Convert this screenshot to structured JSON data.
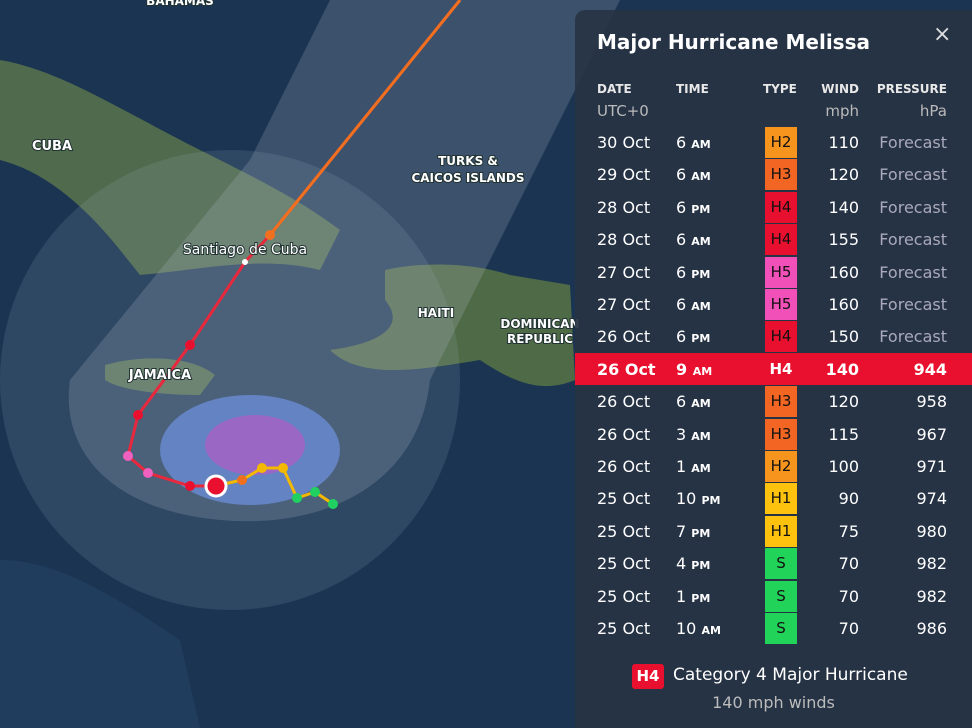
{
  "map": {
    "labels": {
      "bahamas": "BAHAMAS",
      "cuba": "CUBA",
      "turks_1": "TURKS &",
      "turks_2": "CAICOS ISLANDS",
      "santiago": "Santiago de Cuba",
      "haiti": "HAITI",
      "dominican_1": "DOMINICAN",
      "dominican_2": "REPUBLIC",
      "jamaica": "JAMAICA"
    }
  },
  "panel": {
    "title": "Major Hurricane Melissa",
    "headers": {
      "date": "DATE",
      "time": "TIME",
      "type": "TYPE",
      "wind": "WIND",
      "pressure": "PRESSURE"
    },
    "units": {
      "date": "UTC+0",
      "wind": "mph",
      "pressure": "hPa"
    },
    "highlight_color": "#e8102e",
    "rows": [
      {
        "date": "30 Oct",
        "time": "6",
        "period": "AM",
        "type": "H2",
        "type_color": "#f7941d",
        "wind": 110,
        "pressure": "Forecast"
      },
      {
        "date": "29 Oct",
        "time": "6",
        "period": "AM",
        "type": "H3",
        "type_color": "#f26522",
        "wind": 120,
        "pressure": "Forecast"
      },
      {
        "date": "28 Oct",
        "time": "6",
        "period": "PM",
        "type": "H4",
        "type_color": "#e8102e",
        "wind": 140,
        "pressure": "Forecast"
      },
      {
        "date": "28 Oct",
        "time": "6",
        "period": "AM",
        "type": "H4",
        "type_color": "#e8102e",
        "wind": 155,
        "pressure": "Forecast"
      },
      {
        "date": "27 Oct",
        "time": "6",
        "period": "PM",
        "type": "H5",
        "type_color": "#f050b8",
        "wind": 160,
        "pressure": "Forecast"
      },
      {
        "date": "27 Oct",
        "time": "6",
        "period": "AM",
        "type": "H5",
        "type_color": "#f050b8",
        "wind": 160,
        "pressure": "Forecast"
      },
      {
        "date": "26 Oct",
        "time": "6",
        "period": "PM",
        "type": "H4",
        "type_color": "#e8102e",
        "wind": 150,
        "pressure": "Forecast"
      },
      {
        "date": "26 Oct",
        "time": "9",
        "period": "AM",
        "type": "H4",
        "type_color": "#e8102e",
        "wind": 140,
        "pressure": 944,
        "current": true
      },
      {
        "date": "26 Oct",
        "time": "6",
        "period": "AM",
        "type": "H3",
        "type_color": "#f26522",
        "wind": 120,
        "pressure": 958
      },
      {
        "date": "26 Oct",
        "time": "3",
        "period": "AM",
        "type": "H3",
        "type_color": "#f26522",
        "wind": 115,
        "pressure": 967
      },
      {
        "date": "26 Oct",
        "time": "1",
        "period": "AM",
        "type": "H2",
        "type_color": "#f7941d",
        "wind": 100,
        "pressure": 971
      },
      {
        "date": "25 Oct",
        "time": "10",
        "period": "PM",
        "type": "H1",
        "type_color": "#fdc20e",
        "wind": 90,
        "pressure": 974
      },
      {
        "date": "25 Oct",
        "time": "7",
        "period": "PM",
        "type": "H1",
        "type_color": "#fdc20e",
        "wind": 75,
        "pressure": 980
      },
      {
        "date": "25 Oct",
        "time": "4",
        "period": "PM",
        "type": "S",
        "type_color": "#22d35a",
        "wind": 70,
        "pressure": 982
      },
      {
        "date": "25 Oct",
        "time": "1",
        "period": "PM",
        "type": "S",
        "type_color": "#22d35a",
        "wind": 70,
        "pressure": 982
      },
      {
        "date": "25 Oct",
        "time": "10",
        "period": "AM",
        "type": "S",
        "type_color": "#22d35a",
        "wind": 70,
        "pressure": 986
      }
    ],
    "footer": {
      "badge": "H4",
      "badge_color": "#e8102e",
      "category": "Category 4 Major Hurricane",
      "winds": "140 mph winds"
    }
  }
}
